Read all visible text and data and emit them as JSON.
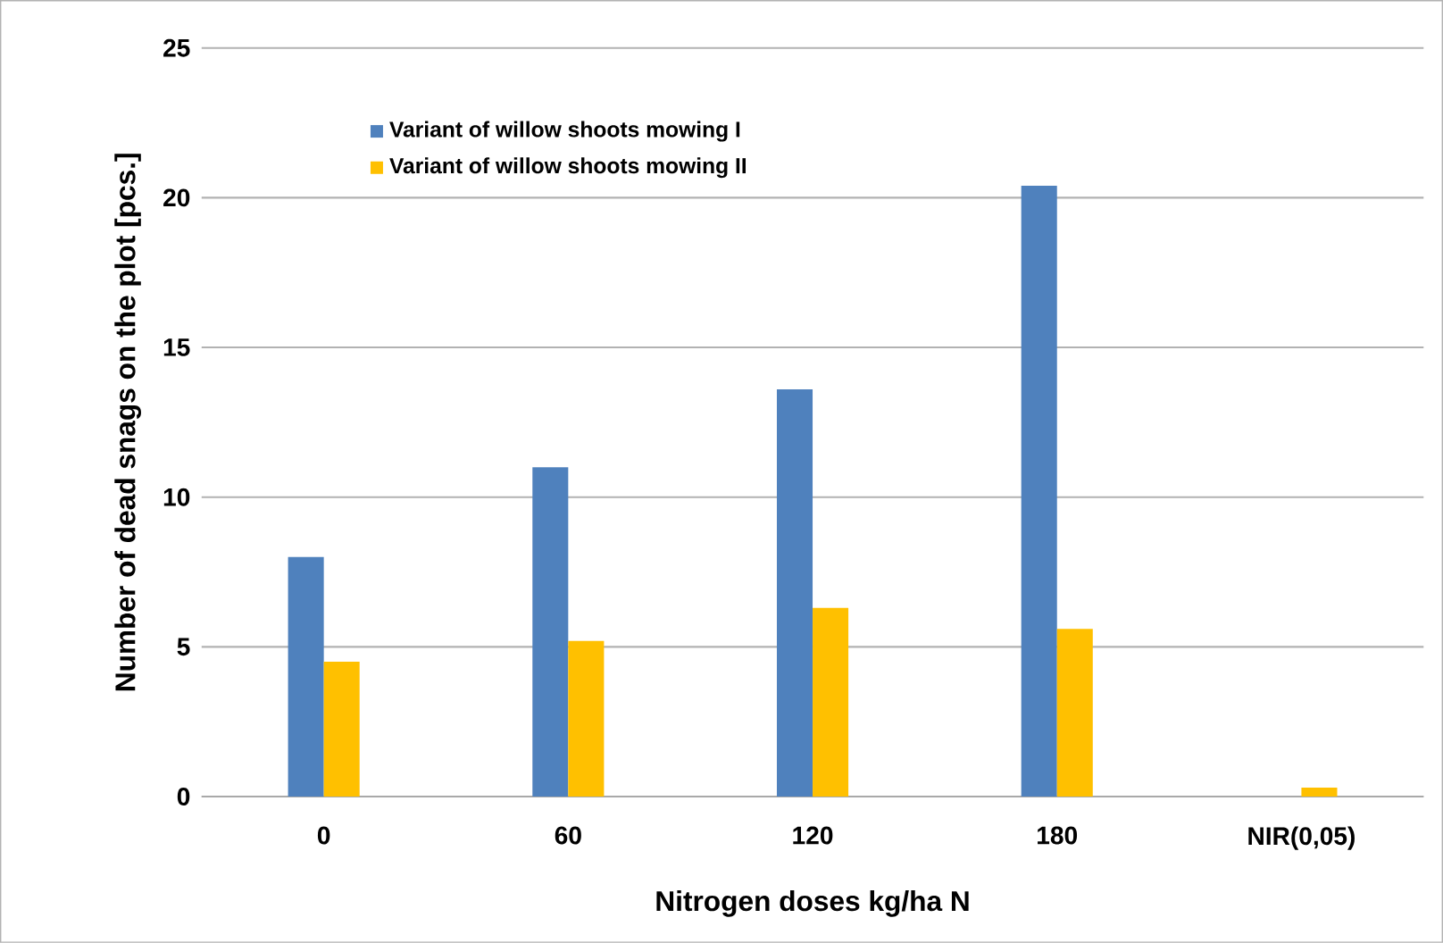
{
  "chart_data": {
    "type": "bar",
    "xlabel": "Nitrogen doses kg/ha N",
    "ylabel": "Number of dead snags on the plot [pcs.]",
    "categories": [
      "0",
      "60",
      "120",
      "180",
      "NIR(0,05)"
    ],
    "series": [
      {
        "name": "Variant of willow shoots mowing I",
        "color": "#4f81bd",
        "values": [
          8.0,
          11.0,
          13.6,
          20.4,
          null
        ]
      },
      {
        "name": "Variant of willow shoots mowing II",
        "color": "#ffc000",
        "values": [
          4.5,
          5.2,
          6.3,
          5.6,
          0.3
        ]
      }
    ],
    "ylim": [
      0,
      25
    ],
    "yticks": [
      0,
      5,
      10,
      15,
      20,
      25
    ],
    "grid": "y",
    "legend": "top left"
  }
}
